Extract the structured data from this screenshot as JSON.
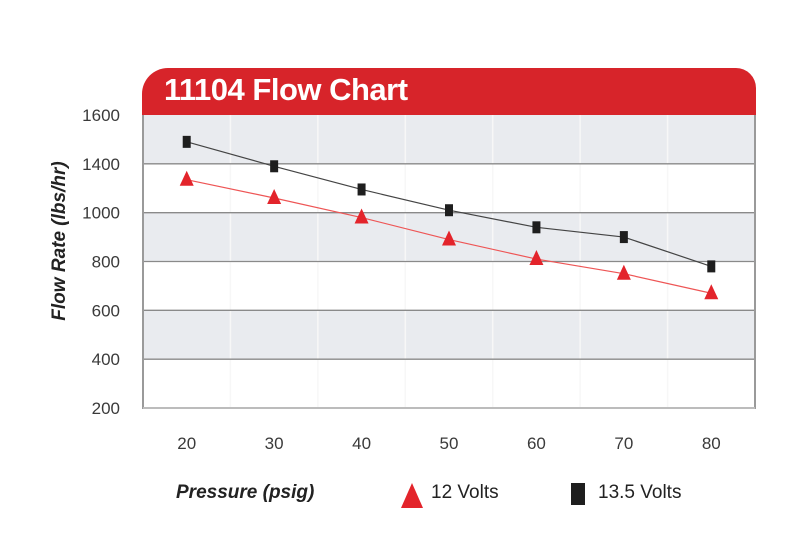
{
  "chart_data": {
    "type": "line",
    "title": "11104 Flow Chart",
    "xlabel": "Pressure (psig)",
    "ylabel": "Flow Rate (lbs/hr)",
    "x": [
      20,
      30,
      40,
      50,
      60,
      70,
      80
    ],
    "x_ticks": [
      "20",
      "30",
      "40",
      "50",
      "60",
      "70",
      "80"
    ],
    "xlim": [
      15,
      85
    ],
    "y_ticks": [
      "1600",
      "1400",
      "1000",
      "800",
      "600",
      "400",
      "200"
    ],
    "ylim": [
      200,
      1600
    ],
    "grid": "horizontal banded",
    "legend_position": "bottom",
    "series": [
      {
        "name": "12 Volts",
        "marker": "triangle",
        "color": "#e3242b",
        "values": [
          1270,
          1120,
          980,
          890,
          810,
          750,
          670
        ]
      },
      {
        "name": "13.5 Volts",
        "marker": "square",
        "color": "#1e1e1e",
        "values": [
          1490,
          1380,
          1190,
          1020,
          940,
          900,
          780
        ]
      }
    ],
    "colors": {
      "banner": "#d7242a",
      "band": "#e9ebef"
    }
  }
}
